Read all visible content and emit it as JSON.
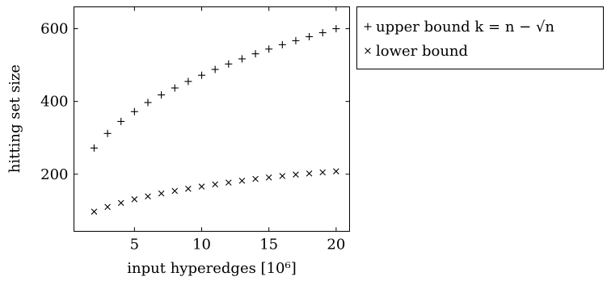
{
  "chart_data": {
    "type": "scatter",
    "xlabel": "input hyperedges [10⁶]",
    "ylabel": "hitting set size",
    "xlim": [
      0.5,
      21.0
    ],
    "ylim": [
      43,
      660
    ],
    "xticks": [
      5,
      10,
      15,
      20
    ],
    "yticks": [
      200,
      400,
      600
    ],
    "grid": false,
    "legend_position": "outside-top-right",
    "series": [
      {
        "name": "upper bound k = n − √n",
        "marker": "plus",
        "x": [
          2,
          3,
          4,
          5,
          6,
          7,
          8,
          9,
          10,
          11,
          12,
          13,
          14,
          15,
          16,
          17,
          18,
          19,
          20
        ],
        "y": [
          272,
          312,
          345,
          372,
          397,
          418,
          437,
          455,
          472,
          488,
          503,
          517,
          531,
          544,
          556,
          567,
          578,
          589,
          600
        ]
      },
      {
        "name": "lower bound",
        "marker": "cross",
        "x": [
          2,
          3,
          4,
          5,
          6,
          7,
          8,
          9,
          10,
          11,
          12,
          13,
          14,
          15,
          16,
          17,
          18,
          19,
          20
        ],
        "y": [
          97,
          110,
          121,
          131,
          139,
          147,
          154,
          160,
          166,
          172,
          177,
          182,
          187,
          191,
          195,
          199,
          202,
          205,
          208
        ]
      }
    ]
  }
}
